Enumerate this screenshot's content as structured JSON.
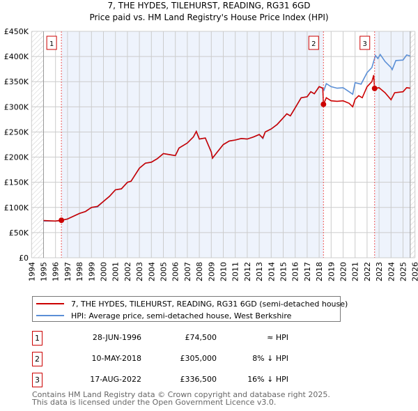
{
  "title": "7, THE HYDES, TILEHURST, READING, RG31 6GD",
  "subtitle": "Price paid vs. HM Land Registry's House Price Index (HPI)",
  "legend": {
    "property": "7, THE HYDES, TILEHURST, READING, RG31 6GD (semi-detached house)",
    "hpi": "HPI: Average price, semi-detached house, West Berkshire"
  },
  "colors": {
    "property": "#cc0000",
    "hpi": "#5b8fd6",
    "shade": "#eef3fc"
  },
  "sales": [
    {
      "num": "1",
      "date": "28-JUN-1996",
      "price": "£74,500",
      "vs": "≈ HPI",
      "year": 1996.49,
      "value": 74.5
    },
    {
      "num": "2",
      "date": "10-MAY-2018",
      "price": "£305,000",
      "vs": "8% ↓ HPI",
      "year": 2018.36,
      "value": 305
    },
    {
      "num": "3",
      "date": "17-AUG-2022",
      "price": "£336,500",
      "vs": "16% ↓ HPI",
      "year": 2022.63,
      "value": 336.5
    }
  ],
  "footer": [
    "Contains HM Land Registry data © Crown copyright and database right 2025.",
    "This data is licensed under the Open Government Licence v3.0."
  ],
  "chart_data": {
    "type": "line",
    "xlim": [
      1994,
      2026
    ],
    "ylim": [
      0,
      450
    ],
    "y_ticks": [
      "£0",
      "£50K",
      "£100K",
      "£150K",
      "£200K",
      "£250K",
      "£300K",
      "£350K",
      "£400K",
      "£450K"
    ],
    "x_ticks": [
      "1994",
      "1995",
      "1996",
      "1997",
      "1998",
      "1999",
      "2000",
      "2001",
      "2002",
      "2003",
      "2004",
      "2005",
      "2006",
      "2007",
      "2008",
      "2009",
      "2010",
      "2011",
      "2012",
      "2013",
      "2014",
      "2015",
      "2016",
      "2017",
      "2018",
      "2019",
      "2020",
      "2021",
      "2022",
      "2023",
      "2024",
      "2025",
      "2026"
    ],
    "series": [
      {
        "name": "property",
        "points": [
          [
            1995,
            74
          ],
          [
            1996,
            73
          ],
          [
            1996.49,
            74.5
          ],
          [
            1997,
            77
          ],
          [
            1998,
            88
          ],
          [
            1998.5,
            92
          ],
          [
            1999,
            100
          ],
          [
            1999.5,
            102
          ],
          [
            2000,
            112
          ],
          [
            2000.5,
            122
          ],
          [
            2001,
            135
          ],
          [
            2001.5,
            137
          ],
          [
            2002,
            150
          ],
          [
            2002.3,
            152
          ],
          [
            2003,
            178
          ],
          [
            2003.5,
            188
          ],
          [
            2004,
            190
          ],
          [
            2004.5,
            197
          ],
          [
            2005,
            207
          ],
          [
            2005.5,
            205
          ],
          [
            2006,
            203
          ],
          [
            2006.3,
            218
          ],
          [
            2007,
            228
          ],
          [
            2007.5,
            240
          ],
          [
            2007.75,
            251
          ],
          [
            2008,
            236
          ],
          [
            2008.5,
            238
          ],
          [
            2009,
            210
          ],
          [
            2009.1,
            198
          ],
          [
            2009.5,
            210
          ],
          [
            2010,
            225
          ],
          [
            2010.5,
            232
          ],
          [
            2011,
            234
          ],
          [
            2011.5,
            237
          ],
          [
            2012,
            236
          ],
          [
            2012.5,
            240
          ],
          [
            2013,
            245
          ],
          [
            2013.3,
            238
          ],
          [
            2013.5,
            250
          ],
          [
            2014,
            256
          ],
          [
            2014.5,
            265
          ],
          [
            2015,
            278
          ],
          [
            2015.3,
            286
          ],
          [
            2015.6,
            282
          ],
          [
            2016,
            298
          ],
          [
            2016.5,
            318
          ],
          [
            2017,
            320
          ],
          [
            2017.3,
            330
          ],
          [
            2017.6,
            326
          ],
          [
            2018,
            340
          ],
          [
            2018.3,
            337
          ],
          [
            2018.36,
            305
          ],
          [
            2018.6,
            318
          ],
          [
            2019,
            312
          ],
          [
            2019.5,
            311
          ],
          [
            2020,
            312
          ],
          [
            2020.5,
            307
          ],
          [
            2020.8,
            300
          ],
          [
            2021,
            315
          ],
          [
            2021.3,
            322
          ],
          [
            2021.6,
            318
          ],
          [
            2022,
            340
          ],
          [
            2022.4,
            350
          ],
          [
            2022.55,
            363
          ],
          [
            2022.63,
            336.5
          ],
          [
            2023,
            338
          ],
          [
            2023.5,
            328
          ],
          [
            2024,
            314
          ],
          [
            2024.3,
            328
          ],
          [
            2025,
            330
          ],
          [
            2025.3,
            338
          ],
          [
            2025.6,
            337
          ]
        ]
      },
      {
        "name": "hpi",
        "points": [
          [
            1995,
            73
          ],
          [
            1996,
            73
          ],
          [
            1996.49,
            74
          ],
          [
            1997,
            77
          ],
          [
            1998,
            88
          ],
          [
            1998.5,
            92
          ],
          [
            1999,
            100
          ],
          [
            1999.5,
            101
          ],
          [
            2000,
            112
          ],
          [
            2000.5,
            122
          ],
          [
            2001,
            135
          ],
          [
            2001.5,
            137
          ],
          [
            2002,
            150
          ],
          [
            2002.3,
            152
          ],
          [
            2003,
            178
          ],
          [
            2003.5,
            188
          ],
          [
            2004,
            190
          ],
          [
            2004.5,
            197
          ],
          [
            2005,
            207
          ],
          [
            2005.5,
            205
          ],
          [
            2006,
            203
          ],
          [
            2006.3,
            218
          ],
          [
            2007,
            228
          ],
          [
            2007.5,
            240
          ],
          [
            2007.75,
            251
          ],
          [
            2008,
            236
          ],
          [
            2008.5,
            238
          ],
          [
            2009,
            210
          ],
          [
            2009.1,
            198
          ],
          [
            2009.5,
            210
          ],
          [
            2010,
            225
          ],
          [
            2010.5,
            232
          ],
          [
            2011,
            234
          ],
          [
            2011.5,
            237
          ],
          [
            2012,
            236
          ],
          [
            2012.5,
            240
          ],
          [
            2013,
            245
          ],
          [
            2013.3,
            237
          ],
          [
            2013.5,
            250
          ],
          [
            2014,
            256
          ],
          [
            2014.5,
            265
          ],
          [
            2015,
            278
          ],
          [
            2015.3,
            286
          ],
          [
            2015.6,
            282
          ],
          [
            2016,
            298
          ],
          [
            2016.5,
            318
          ],
          [
            2017,
            320
          ],
          [
            2017.3,
            330
          ],
          [
            2017.6,
            326
          ],
          [
            2018,
            340
          ],
          [
            2018.3,
            337
          ],
          [
            2018.4,
            333
          ],
          [
            2018.6,
            346
          ],
          [
            2019,
            340
          ],
          [
            2019.5,
            337
          ],
          [
            2020,
            338
          ],
          [
            2020.5,
            330
          ],
          [
            2020.8,
            325
          ],
          [
            2021,
            348
          ],
          [
            2021.5,
            345
          ],
          [
            2022,
            368
          ],
          [
            2022.4,
            378
          ],
          [
            2022.7,
            402
          ],
          [
            2022.9,
            396
          ],
          [
            2023.1,
            404
          ],
          [
            2023.5,
            390
          ],
          [
            2024,
            378
          ],
          [
            2024.1,
            374
          ],
          [
            2024.4,
            392
          ],
          [
            2025,
            393
          ],
          [
            2025.3,
            403
          ],
          [
            2025.6,
            401
          ]
        ]
      }
    ]
  }
}
